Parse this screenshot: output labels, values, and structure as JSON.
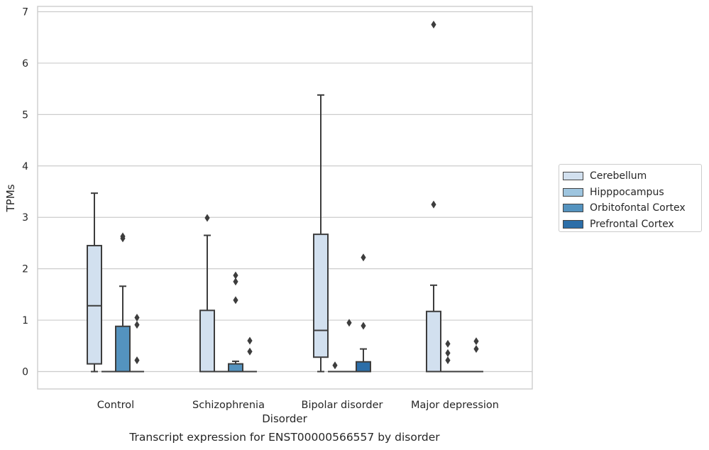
{
  "chart_data": {
    "type": "box",
    "title": "Transcript expression for ENST00000566557 by disorder",
    "xlabel": "Disorder",
    "ylabel": "TPMs",
    "ylim": [
      -0.32,
      7.1
    ],
    "yticks": [
      0,
      1,
      2,
      3,
      4,
      5,
      6,
      7
    ],
    "grid": true,
    "legend_position": "right",
    "categories": [
      "Control",
      "Schizophrenia",
      "Bipolar disorder",
      "Major depression"
    ],
    "series": [
      {
        "name": "Cerebellum",
        "color": "#d2e0ef",
        "boxes": [
          {
            "category": "Control",
            "min": 0.0,
            "q1": 0.15,
            "median": 1.28,
            "q3": 2.45,
            "max": 3.47,
            "outliers": []
          },
          {
            "category": "Schizophrenia",
            "min": 0.0,
            "q1": 0.0,
            "median": 0.0,
            "q3": 1.19,
            "max": 2.65,
            "outliers": [
              2.99
            ]
          },
          {
            "category": "Bipolar disorder",
            "min": 0.0,
            "q1": 0.28,
            "median": 0.8,
            "q3": 2.67,
            "max": 5.38,
            "outliers": []
          },
          {
            "category": "Major depression",
            "min": 0.0,
            "q1": 0.0,
            "median": 0.0,
            "q3": 1.17,
            "max": 1.68,
            "outliers": [
              3.25,
              6.75
            ]
          }
        ]
      },
      {
        "name": "Hipppocampus",
        "color": "#9ec5df",
        "boxes": [
          {
            "category": "Control",
            "min": 0.0,
            "q1": 0.0,
            "median": 0.0,
            "q3": 0.0,
            "max": 0.0,
            "outliers": []
          },
          {
            "category": "Schizophrenia",
            "min": 0.0,
            "q1": 0.0,
            "median": 0.0,
            "q3": 0.0,
            "max": 0.0,
            "outliers": []
          },
          {
            "category": "Bipolar disorder",
            "min": 0.0,
            "q1": 0.0,
            "median": 0.0,
            "q3": 0.0,
            "max": 0.0,
            "outliers": [
              0.12
            ]
          },
          {
            "category": "Major depression",
            "min": 0.0,
            "q1": 0.0,
            "median": 0.0,
            "q3": 0.0,
            "max": 0.0,
            "outliers": [
              0.22,
              0.36,
              0.54
            ]
          }
        ]
      },
      {
        "name": "Orbitofontal Cortex",
        "color": "#5493bf",
        "boxes": [
          {
            "category": "Control",
            "min": 0.0,
            "q1": 0.0,
            "median": 0.0,
            "q3": 0.88,
            "max": 1.66,
            "outliers": [
              2.59,
              2.63
            ]
          },
          {
            "category": "Schizophrenia",
            "min": 0.0,
            "q1": 0.0,
            "median": 0.0,
            "q3": 0.15,
            "max": 0.2,
            "outliers": [
              1.39,
              1.75,
              1.87
            ]
          },
          {
            "category": "Bipolar disorder",
            "min": 0.0,
            "q1": 0.0,
            "median": 0.0,
            "q3": 0.0,
            "max": 0.0,
            "outliers": [
              0.95
            ]
          },
          {
            "category": "Major depression",
            "min": 0.0,
            "q1": 0.0,
            "median": 0.0,
            "q3": 0.0,
            "max": 0.0,
            "outliers": []
          }
        ]
      },
      {
        "name": "Prefrontal Cortex",
        "color": "#2c6ea8",
        "boxes": [
          {
            "category": "Control",
            "min": 0.0,
            "q1": 0.0,
            "median": 0.0,
            "q3": 0.0,
            "max": 0.0,
            "outliers": [
              0.22,
              0.91,
              1.05
            ]
          },
          {
            "category": "Schizophrenia",
            "min": 0.0,
            "q1": 0.0,
            "median": 0.0,
            "q3": 0.0,
            "max": 0.0,
            "outliers": [
              0.39,
              0.6
            ]
          },
          {
            "category": "Bipolar disorder",
            "min": 0.0,
            "q1": 0.0,
            "median": 0.0,
            "q3": 0.19,
            "max": 0.44,
            "outliers": [
              0.89,
              2.22
            ]
          },
          {
            "category": "Major depression",
            "min": 0.0,
            "q1": 0.0,
            "median": 0.0,
            "q3": 0.0,
            "max": 0.0,
            "outliers": [
              0.44,
              0.59
            ]
          }
        ]
      }
    ]
  }
}
